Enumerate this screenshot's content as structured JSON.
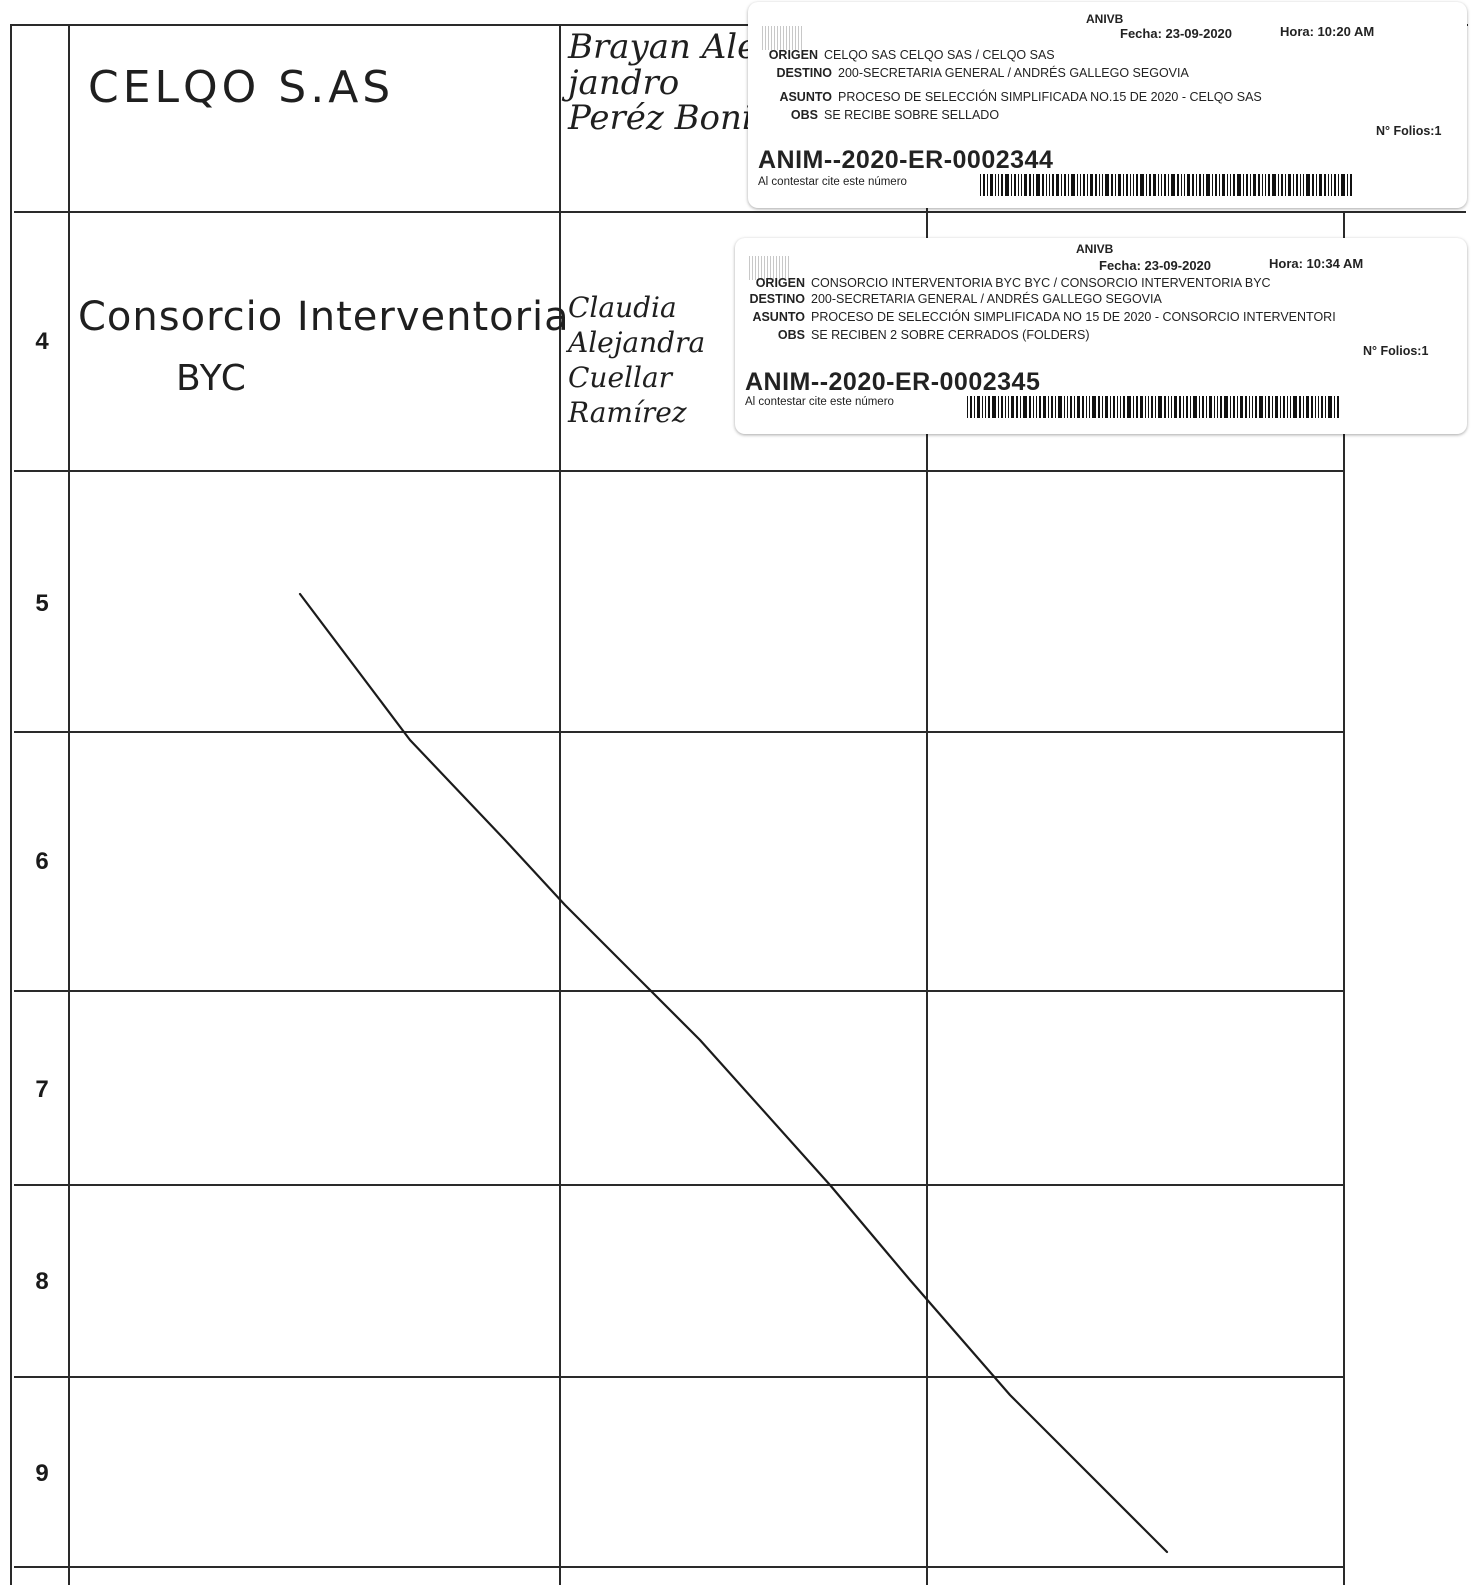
{
  "rows": [
    {
      "number": "",
      "company": "CELQO S.AS",
      "representative": [
        "Brayan Ale",
        "jandro",
        "Peréz Bonilla"
      ]
    },
    {
      "number": "4",
      "company": [
        "Consorcio Interventoria",
        "BYC"
      ],
      "representative": [
        "Claudia",
        "Alejandra",
        "Cuellar",
        "Ramírez"
      ]
    },
    {
      "number": "5"
    },
    {
      "number": "6"
    },
    {
      "number": "7"
    },
    {
      "number": "8"
    },
    {
      "number": "9"
    }
  ],
  "stamps": [
    {
      "org": "ANIVB",
      "fecha": "Fecha: 23-09-2020",
      "hora": "Hora: 10:20 AM",
      "origen_label": "ORIGEN",
      "origen": "CELQO SAS CELQO SAS  / CELQO SAS",
      "destino_label": "DESTINO",
      "destino": "200-SECRETARIA GENERAL / ANDRÉS GALLEGO SEGOVIA",
      "asunto_label": "ASUNTO",
      "asunto": "PROCESO DE SELECCIÓN SIMPLIFICADA NO.15 DE 2020 - CELQO SAS",
      "obs_label": "OBS",
      "obs": "SE RECIBE SOBRE SELLADO",
      "folios": "N° Folios:1",
      "radicado": "ANIM--2020-ER-0002344",
      "cite": "Al contestar cite este número"
    },
    {
      "org": "ANIVB",
      "fecha": "Fecha: 23-09-2020",
      "hora": "Hora: 10:34 AM",
      "origen_label": "ORIGEN",
      "origen": "CONSORCIO INTERVENTORIA BYC BYC  / CONSORCIO INTERVENTORIA BYC",
      "destino_label": "DESTINO",
      "destino": "200-SECRETARIA GENERAL / ANDRÉS GALLEGO SEGOVIA",
      "asunto_label": "ASUNTO",
      "asunto": "PROCESO DE SELECCIÓN SIMPLIFICADA NO 15 DE 2020 - CONSORCIO INTERVENTORI",
      "obs_label": "OBS",
      "obs": "SE RECIBEN 2 SOBRE CERRADOS (FOLDERS)",
      "folios": "N° Folios:1",
      "radicado": "ANIM--2020-ER-0002345",
      "cite": "Al contestar cite este número"
    }
  ]
}
